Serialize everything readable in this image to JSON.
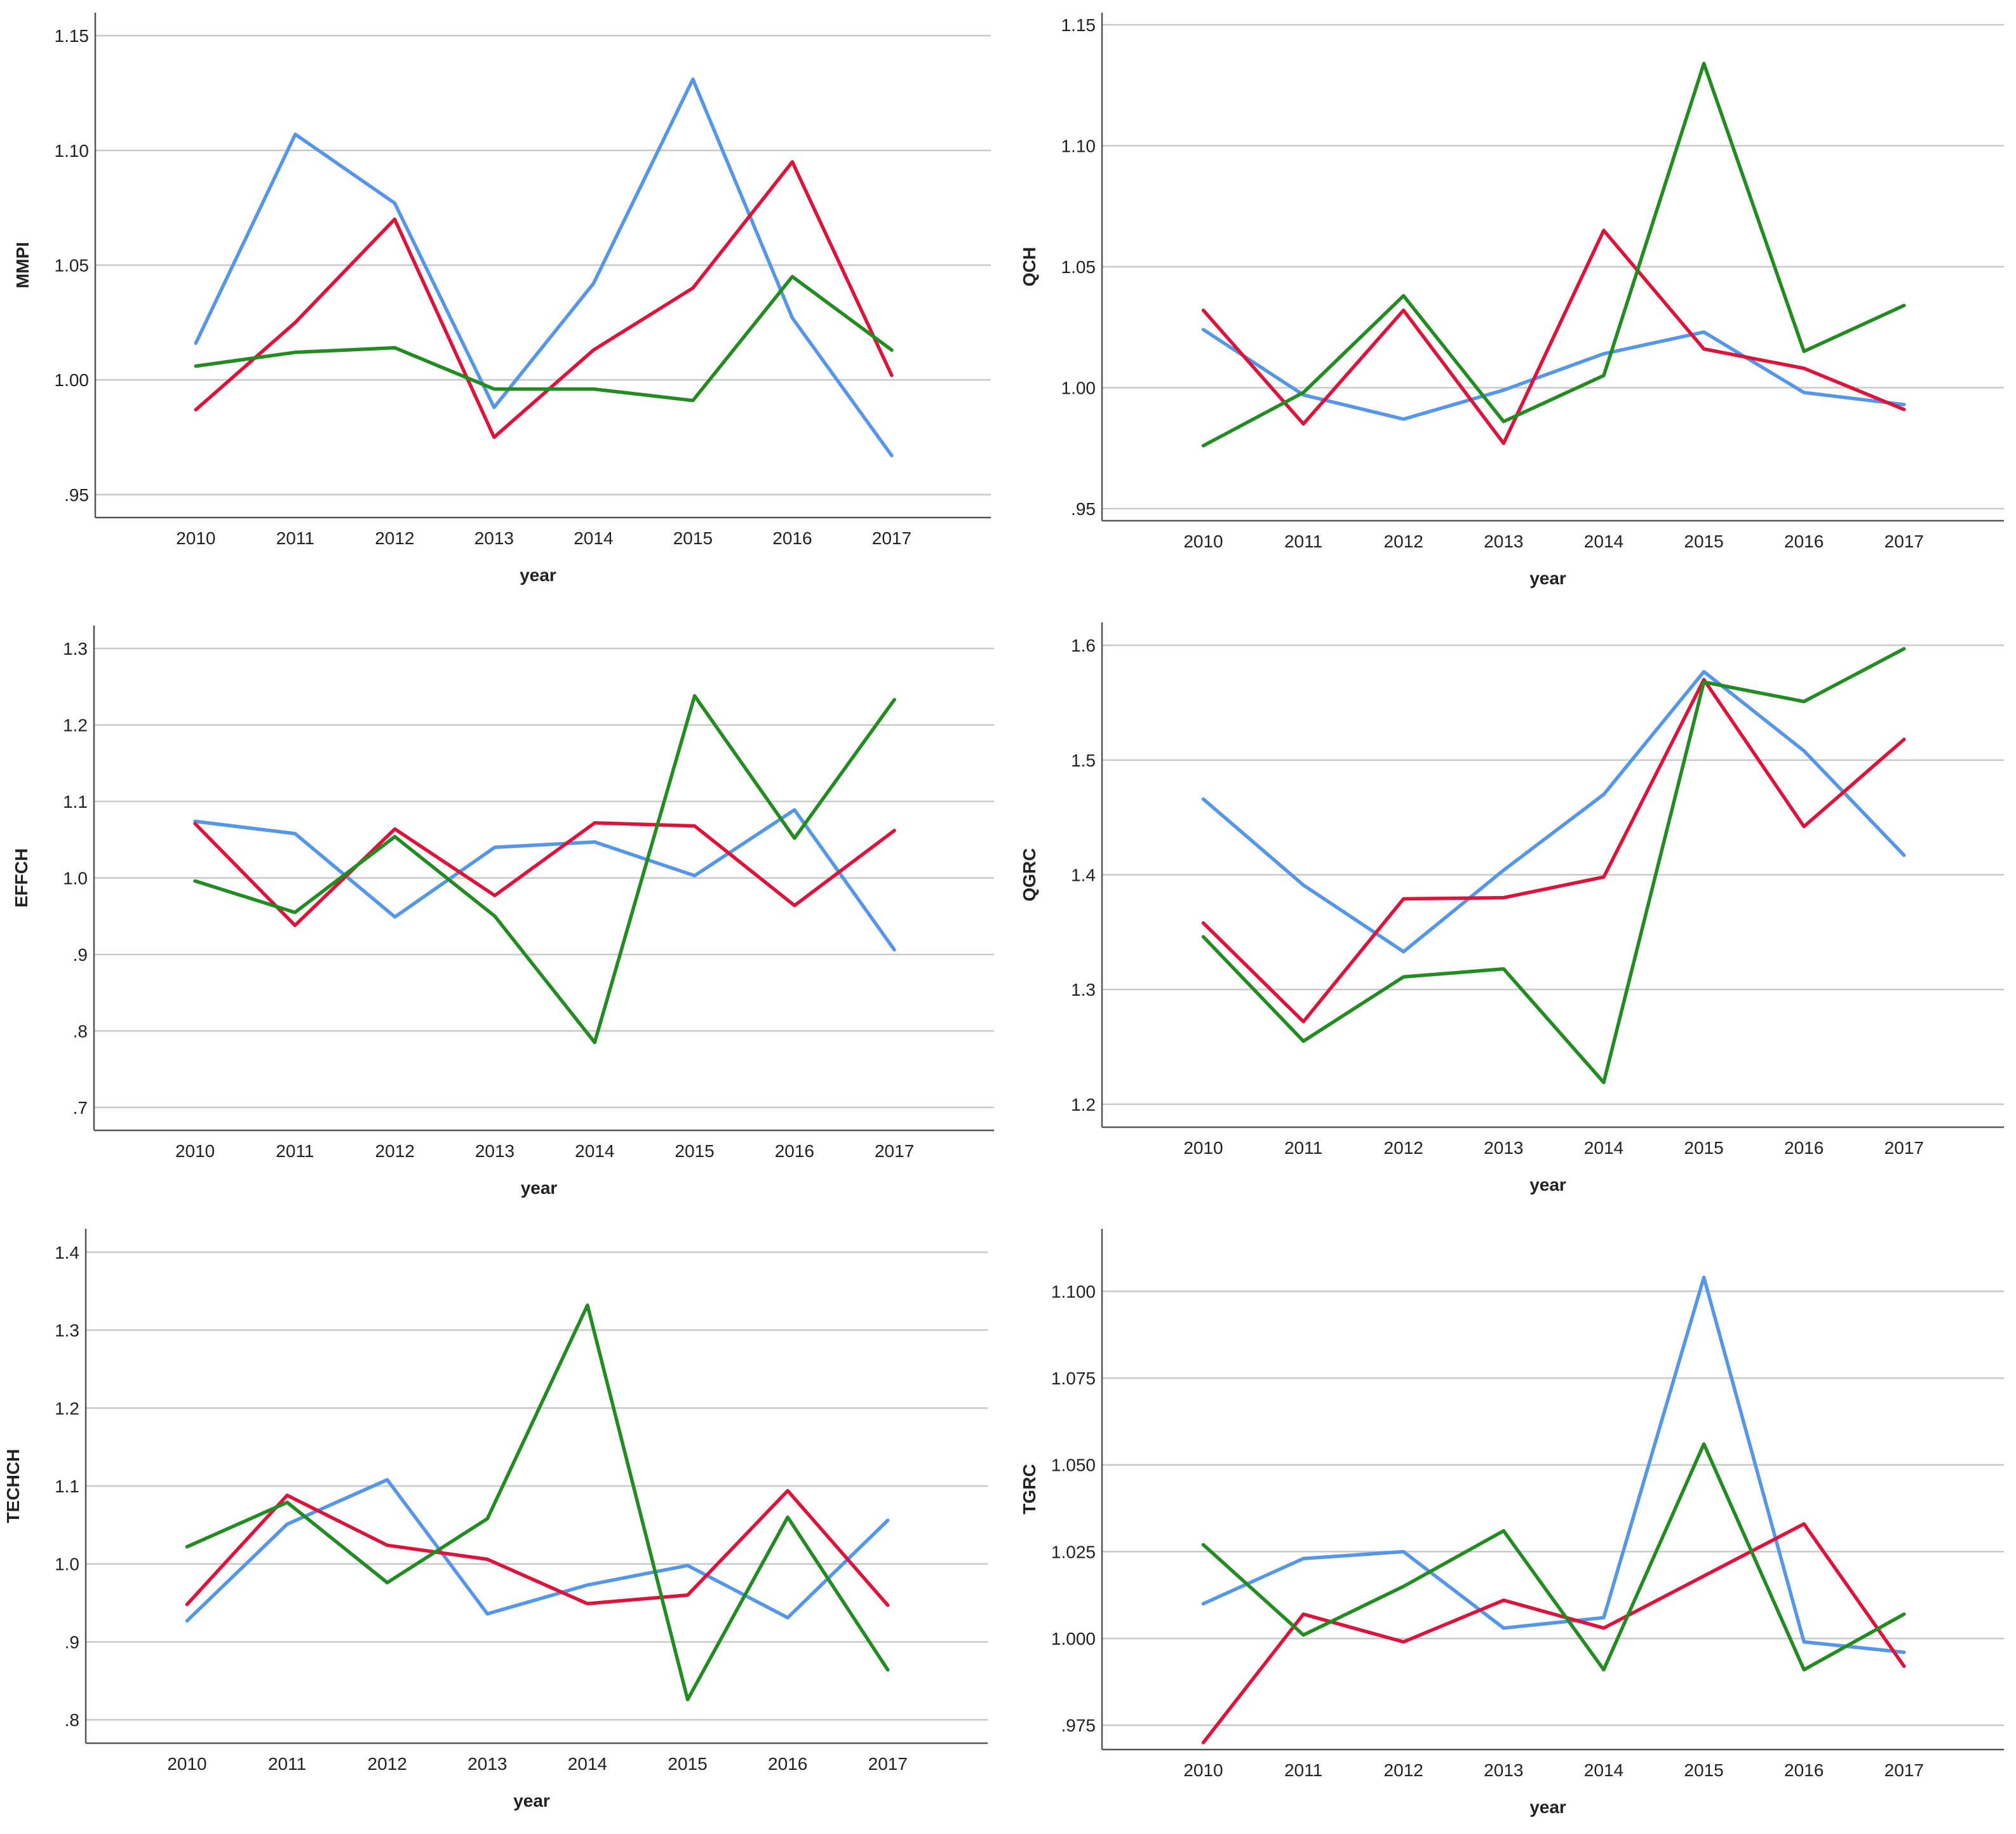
{
  "chart_data": [
    {
      "type": "line",
      "xlabel": "year",
      "ylabel": "MMPI",
      "categories": [
        "2010",
        "2011",
        "2012",
        "2013",
        "2014",
        "2015",
        "2016",
        "2017"
      ],
      "ylim": [
        0.94,
        1.16
      ],
      "yticks": [
        0.95,
        1.0,
        1.05,
        1.1,
        1.15
      ],
      "ytick_labels": [
        ".95",
        "1.00",
        "1.05",
        "1.10",
        "1.15"
      ],
      "grid": true,
      "series": [
        {
          "name": "blue",
          "color": "#5596e6",
          "values": [
            1.016,
            1.107,
            1.077,
            0.988,
            1.042,
            1.131,
            1.027,
            0.967
          ]
        },
        {
          "name": "red",
          "color": "#dc143c",
          "values": [
            0.987,
            1.025,
            1.07,
            0.975,
            1.013,
            1.04,
            1.095,
            1.002
          ]
        },
        {
          "name": "green",
          "color": "#228b22",
          "values": [
            1.006,
            1.012,
            1.014,
            0.996,
            0.996,
            0.991,
            1.045,
            1.013
          ]
        }
      ]
    },
    {
      "type": "line",
      "xlabel": "year",
      "ylabel": "QCH",
      "categories": [
        "2010",
        "2011",
        "2012",
        "2013",
        "2014",
        "2015",
        "2016",
        "2017"
      ],
      "ylim": [
        0.945,
        1.155
      ],
      "yticks": [
        0.95,
        1.0,
        1.05,
        1.1,
        1.15
      ],
      "ytick_labels": [
        ".95",
        "1.00",
        "1.05",
        "1.10",
        "1.15"
      ],
      "grid": true,
      "series": [
        {
          "name": "blue",
          "color": "#5596e6",
          "values": [
            1.024,
            0.997,
            0.987,
            0.999,
            1.014,
            1.023,
            0.998,
            0.993
          ]
        },
        {
          "name": "red",
          "color": "#dc143c",
          "values": [
            1.032,
            0.985,
            1.032,
            0.977,
            1.065,
            1.016,
            1.008,
            0.991
          ]
        },
        {
          "name": "green",
          "color": "#228b22",
          "values": [
            0.976,
            0.998,
            1.038,
            0.986,
            1.005,
            1.134,
            1.015,
            1.034
          ]
        }
      ]
    },
    {
      "type": "line",
      "xlabel": "year",
      "ylabel": "EFFCH",
      "categories": [
        "2010",
        "2011",
        "2012",
        "2013",
        "2014",
        "2015",
        "2016",
        "2017"
      ],
      "ylim": [
        0.67,
        1.33
      ],
      "yticks": [
        0.7,
        0.8,
        0.9,
        1.0,
        1.1,
        1.2,
        1.3
      ],
      "ytick_labels": [
        ".7",
        ".8",
        ".9",
        "1.0",
        "1.1",
        "1.2",
        "1.3"
      ],
      "grid": true,
      "series": [
        {
          "name": "blue",
          "color": "#5596e6",
          "values": [
            1.074,
            1.058,
            0.949,
            1.04,
            1.047,
            1.003,
            1.089,
            0.906
          ]
        },
        {
          "name": "red",
          "color": "#dc143c",
          "values": [
            1.071,
            0.938,
            1.064,
            0.977,
            1.072,
            1.068,
            0.964,
            1.062
          ]
        },
        {
          "name": "green",
          "color": "#228b22",
          "values": [
            0.996,
            0.955,
            1.054,
            0.95,
            0.785,
            1.238,
            1.052,
            1.233
          ]
        }
      ]
    },
    {
      "type": "line",
      "xlabel": "year",
      "ylabel": "QGRC",
      "categories": [
        "2010",
        "2011",
        "2012",
        "2013",
        "2014",
        "2015",
        "2016",
        "2017"
      ],
      "ylim": [
        1.18,
        1.62
      ],
      "yticks": [
        1.2,
        1.3,
        1.4,
        1.5,
        1.6
      ],
      "ytick_labels": [
        "1.2",
        "1.3",
        "1.4",
        "1.5",
        "1.6"
      ],
      "grid": true,
      "series": [
        {
          "name": "blue",
          "color": "#5596e6",
          "values": [
            1.466,
            1.391,
            1.333,
            1.404,
            1.47,
            1.577,
            1.508,
            1.417
          ]
        },
        {
          "name": "red",
          "color": "#dc143c",
          "values": [
            1.358,
            1.272,
            1.379,
            1.38,
            1.398,
            1.57,
            1.442,
            1.518
          ]
        },
        {
          "name": "green",
          "color": "#228b22",
          "values": [
            1.346,
            1.255,
            1.311,
            1.318,
            1.219,
            1.568,
            1.551,
            1.597
          ]
        }
      ]
    },
    {
      "type": "line",
      "xlabel": "year",
      "ylabel": "TECHCH",
      "categories": [
        "2010",
        "2011",
        "2012",
        "2013",
        "2014",
        "2015",
        "2016",
        "2017"
      ],
      "ylim": [
        0.77,
        1.43
      ],
      "yticks": [
        0.8,
        0.9,
        1.0,
        1.1,
        1.2,
        1.3,
        1.4
      ],
      "ytick_labels": [
        ".8",
        ".9",
        "1.0",
        "1.1",
        "1.2",
        "1.3",
        "1.4"
      ],
      "grid": true,
      "series": [
        {
          "name": "blue",
          "color": "#5596e6",
          "values": [
            0.927,
            1.051,
            1.108,
            0.936,
            0.973,
            0.998,
            0.931,
            1.056
          ]
        },
        {
          "name": "red",
          "color": "#dc143c",
          "values": [
            0.948,
            1.088,
            1.024,
            1.006,
            0.949,
            0.96,
            1.094,
            0.947
          ]
        },
        {
          "name": "green",
          "color": "#228b22",
          "values": [
            1.022,
            1.079,
            0.976,
            1.058,
            1.332,
            0.826,
            1.06,
            0.864
          ]
        }
      ]
    },
    {
      "type": "line",
      "xlabel": "year",
      "ylabel": "TGRC",
      "categories": [
        "2010",
        "2011",
        "2012",
        "2013",
        "2014",
        "2015",
        "2016",
        "2017"
      ],
      "ylim": [
        0.968,
        1.118
      ],
      "yticks": [
        0.975,
        1.0,
        1.025,
        1.05,
        1.075,
        1.1
      ],
      "ytick_labels": [
        ".975",
        "1.000",
        "1.025",
        "1.050",
        "1.075",
        "1.100"
      ],
      "grid": true,
      "series": [
        {
          "name": "blue",
          "color": "#5596e6",
          "values": [
            1.01,
            1.023,
            1.025,
            1.003,
            1.006,
            1.104,
            0.999,
            0.996
          ]
        },
        {
          "name": "red",
          "color": "#dc143c",
          "values": [
            0.97,
            1.007,
            0.999,
            1.011,
            1.003,
            1.018,
            1.033,
            0.992
          ]
        },
        {
          "name": "green",
          "color": "#228b22",
          "values": [
            1.027,
            1.001,
            1.015,
            1.031,
            0.991,
            1.056,
            0.991,
            1.007
          ]
        }
      ]
    }
  ]
}
